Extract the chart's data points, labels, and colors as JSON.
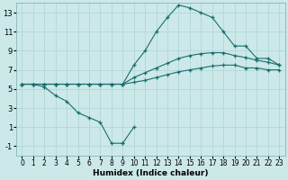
{
  "xlabel": "Humidex (Indice chaleur)",
  "bg_color": "#cce8e8",
  "grid_color": "#b0d8d8",
  "line_color": "#1a6e6e",
  "xlim": [
    -0.5,
    23.5
  ],
  "ylim": [
    -2,
    14
  ],
  "xticks": [
    0,
    1,
    2,
    3,
    4,
    5,
    6,
    7,
    8,
    9,
    10,
    11,
    12,
    13,
    14,
    15,
    16,
    17,
    18,
    19,
    20,
    21,
    22,
    23
  ],
  "yticks": [
    -1,
    1,
    3,
    5,
    7,
    9,
    11,
    13
  ],
  "series": [
    {
      "x": [
        0,
        1,
        2,
        3,
        4,
        5,
        6,
        7,
        8,
        9
      ],
      "y": [
        5.5,
        5.5,
        5.2,
        4.3,
        3.7,
        2.5,
        2.0,
        1.5,
        -0.7,
        -0.7
      ]
    },
    {
      "x": [
        9,
        10
      ],
      "y": [
        -0.7,
        1.0
      ]
    },
    {
      "x": [
        0,
        1,
        2,
        3,
        4,
        5,
        6,
        7,
        8,
        9,
        10,
        11,
        12,
        13,
        14,
        15,
        16,
        17,
        18,
        19,
        20,
        21,
        22,
        23
      ],
      "y": [
        5.5,
        5.5,
        5.5,
        5.5,
        5.5,
        5.5,
        5.5,
        5.5,
        5.5,
        5.5,
        5.7,
        5.9,
        6.2,
        6.5,
        6.8,
        7.0,
        7.2,
        7.4,
        7.5,
        7.5,
        7.2,
        7.2,
        7.0,
        7.0
      ]
    },
    {
      "x": [
        0,
        1,
        2,
        3,
        4,
        5,
        6,
        7,
        8,
        9,
        10,
        11,
        12,
        13,
        14,
        15,
        16,
        17,
        18,
        19,
        20,
        21,
        22,
        23
      ],
      "y": [
        5.5,
        5.5,
        5.5,
        5.5,
        5.5,
        5.5,
        5.5,
        5.5,
        5.5,
        5.5,
        6.2,
        6.7,
        7.2,
        7.7,
        8.2,
        8.5,
        8.7,
        8.8,
        8.8,
        8.5,
        8.3,
        8.0,
        7.8,
        7.5
      ]
    },
    {
      "x": [
        0,
        1,
        2,
        3,
        4,
        5,
        6,
        7,
        8,
        9,
        10,
        11,
        12,
        13,
        14,
        15,
        16,
        17,
        18,
        19,
        20,
        21,
        22,
        23
      ],
      "y": [
        5.5,
        5.5,
        5.5,
        5.5,
        5.5,
        5.5,
        5.5,
        5.5,
        5.5,
        5.5,
        7.5,
        9.0,
        11.0,
        12.5,
        13.8,
        13.5,
        13.0,
        12.5,
        11.0,
        9.5,
        9.5,
        8.2,
        8.2,
        7.5
      ]
    }
  ]
}
